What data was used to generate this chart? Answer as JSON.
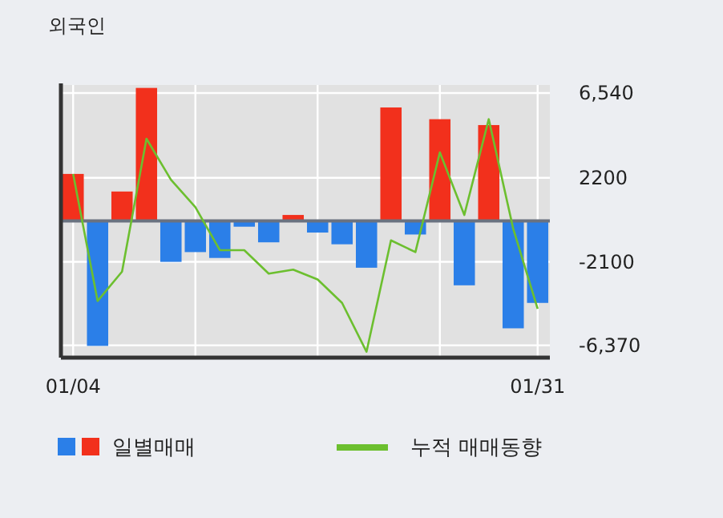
{
  "chart_data": {
    "type": "bar",
    "title": "외국인",
    "categories": [
      "01/04",
      null,
      null,
      null,
      null,
      null,
      null,
      null,
      null,
      null,
      null,
      null,
      null,
      null,
      null,
      null,
      null,
      null,
      null,
      "01/31"
    ],
    "series": [
      {
        "name": "일별매매",
        "values": [
          2400,
          -6400,
          1500,
          6800,
          -2100,
          -1600,
          -1900,
          -300,
          -1100,
          300,
          -600,
          -1200,
          -2400,
          5800,
          -700,
          5200,
          -3300,
          4900,
          -5500,
          -4200
        ],
        "colors": [
          "#f2301c",
          "#2b7fe8",
          "#f2301c",
          "#f2301c",
          "#2b7fe8",
          "#2b7fe8",
          "#2b7fe8",
          "#2b7fe8",
          "#2b7fe8",
          "#f2301c",
          "#2b7fe8",
          "#2b7fe8",
          "#2b7fe8",
          "#f2301c",
          "#2b7fe8",
          "#f2301c",
          "#2b7fe8",
          "#f2301c",
          "#2b7fe8",
          "#2b7fe8"
        ]
      },
      {
        "name": "누적 매매동향",
        "type": "line",
        "color": "#6cbf2f",
        "values": [
          2400,
          -4100,
          -2600,
          4200,
          2100,
          700,
          -1500,
          -1500,
          -2700,
          -2500,
          -3000,
          -4200,
          -6700,
          -1000,
          -1600,
          3500,
          300,
          5200,
          -400,
          -4500
        ]
      }
    ],
    "ylim": [
      -7000,
      6950
    ],
    "yticks": [
      {
        "value": 6540,
        "label": "6,540"
      },
      2200,
      -2100,
      {
        "value": -6370,
        "label": "-6,370"
      }
    ],
    "grid": true,
    "legend": "bottom"
  }
}
